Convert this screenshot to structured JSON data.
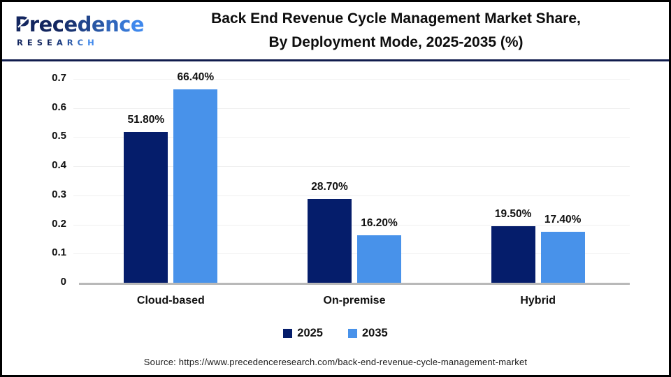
{
  "header": {
    "logo": {
      "brand": "Precedence",
      "brand_sub": "RESEARCH"
    },
    "title_line1": "Back End Revenue Cycle Management Market Share,",
    "title_line2": "By Deployment Mode, 2025-2035 (%)"
  },
  "chart_data": {
    "type": "bar",
    "title": "Back End Revenue Cycle Management Market Share, By Deployment Mode, 2025-2035 (%)",
    "categories": [
      "Cloud-based",
      "On-premise",
      "Hybrid"
    ],
    "series": [
      {
        "name": "2025",
        "color": "#051d6b",
        "values": [
          0.518,
          0.287,
          0.195
        ],
        "labels": [
          "51.80%",
          "28.70%",
          "19.50%"
        ]
      },
      {
        "name": "2035",
        "color": "#4892ea",
        "values": [
          0.664,
          0.162,
          0.174
        ],
        "labels": [
          "66.40%",
          "16.20%",
          "17.40%"
        ]
      }
    ],
    "ylim": [
      0,
      0.7
    ],
    "yticks": [
      "0",
      "0.1",
      "0.2",
      "0.3",
      "0.4",
      "0.5",
      "0.6",
      "0.7"
    ],
    "grid": true,
    "legend_position": "bottom"
  },
  "source": "Source: https://www.precedenceresearch.com/back-end-revenue-cycle-management-market",
  "colors": {
    "series_2025": "#051d6b",
    "series_2035": "#4892ea",
    "header_divider": "#101c4d",
    "gridline": "#f0f0f0",
    "axis_line": "#b9b9b9",
    "logo_navy": "#13265f",
    "logo_blue": "#3f88ec"
  }
}
